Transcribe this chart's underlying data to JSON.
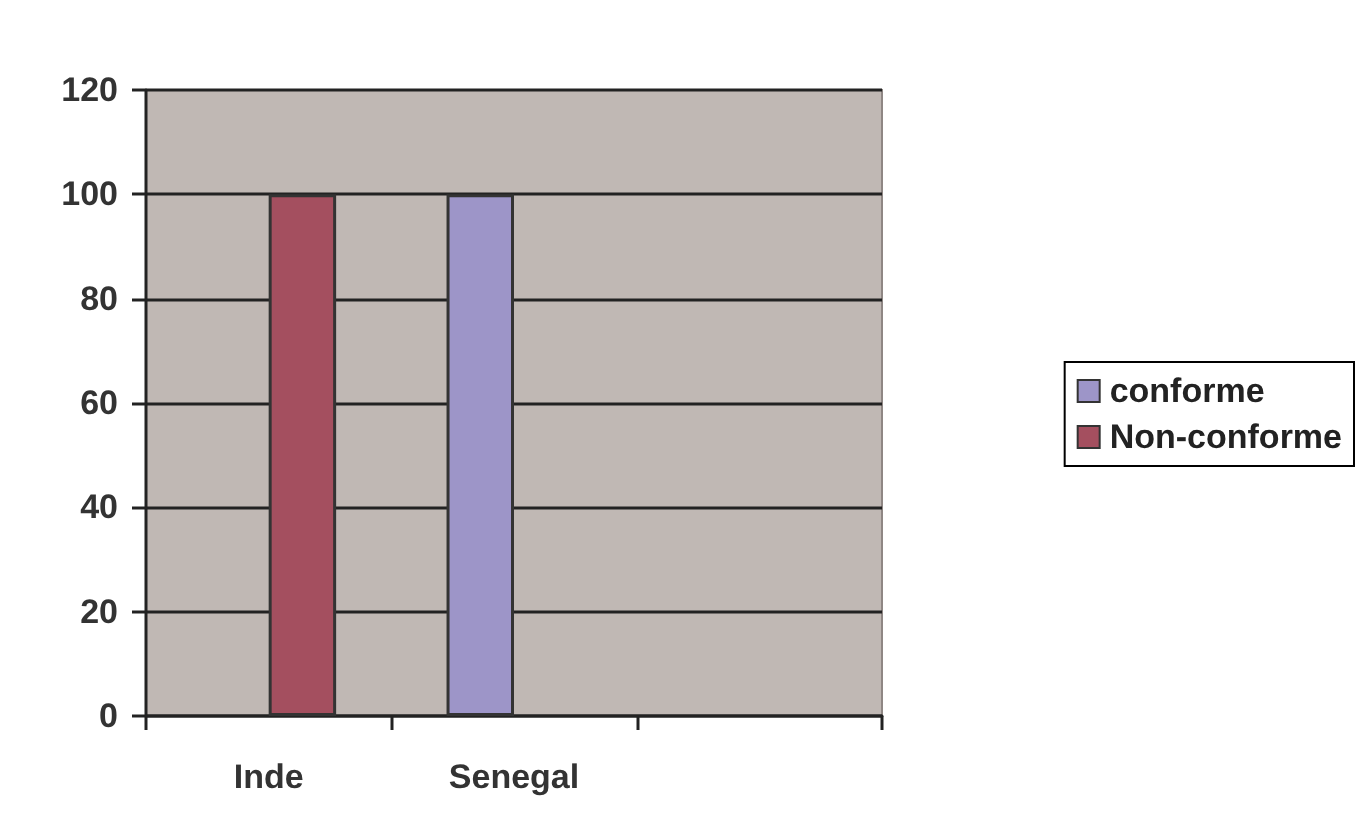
{
  "chart_data": {
    "type": "bar",
    "categories": [
      "Inde",
      "Senegal",
      null
    ],
    "series": [
      {
        "name": "conforme",
        "color": "#9d95c8",
        "values": [
          null,
          100,
          null
        ]
      },
      {
        "name": "Non-conforme",
        "color": "#a44f5f",
        "values": [
          100,
          null,
          null
        ]
      }
    ],
    "ylim": [
      0,
      120
    ],
    "yticks": [
      0,
      20,
      40,
      60,
      80,
      100,
      120
    ],
    "grid": "y",
    "legend": "right"
  }
}
